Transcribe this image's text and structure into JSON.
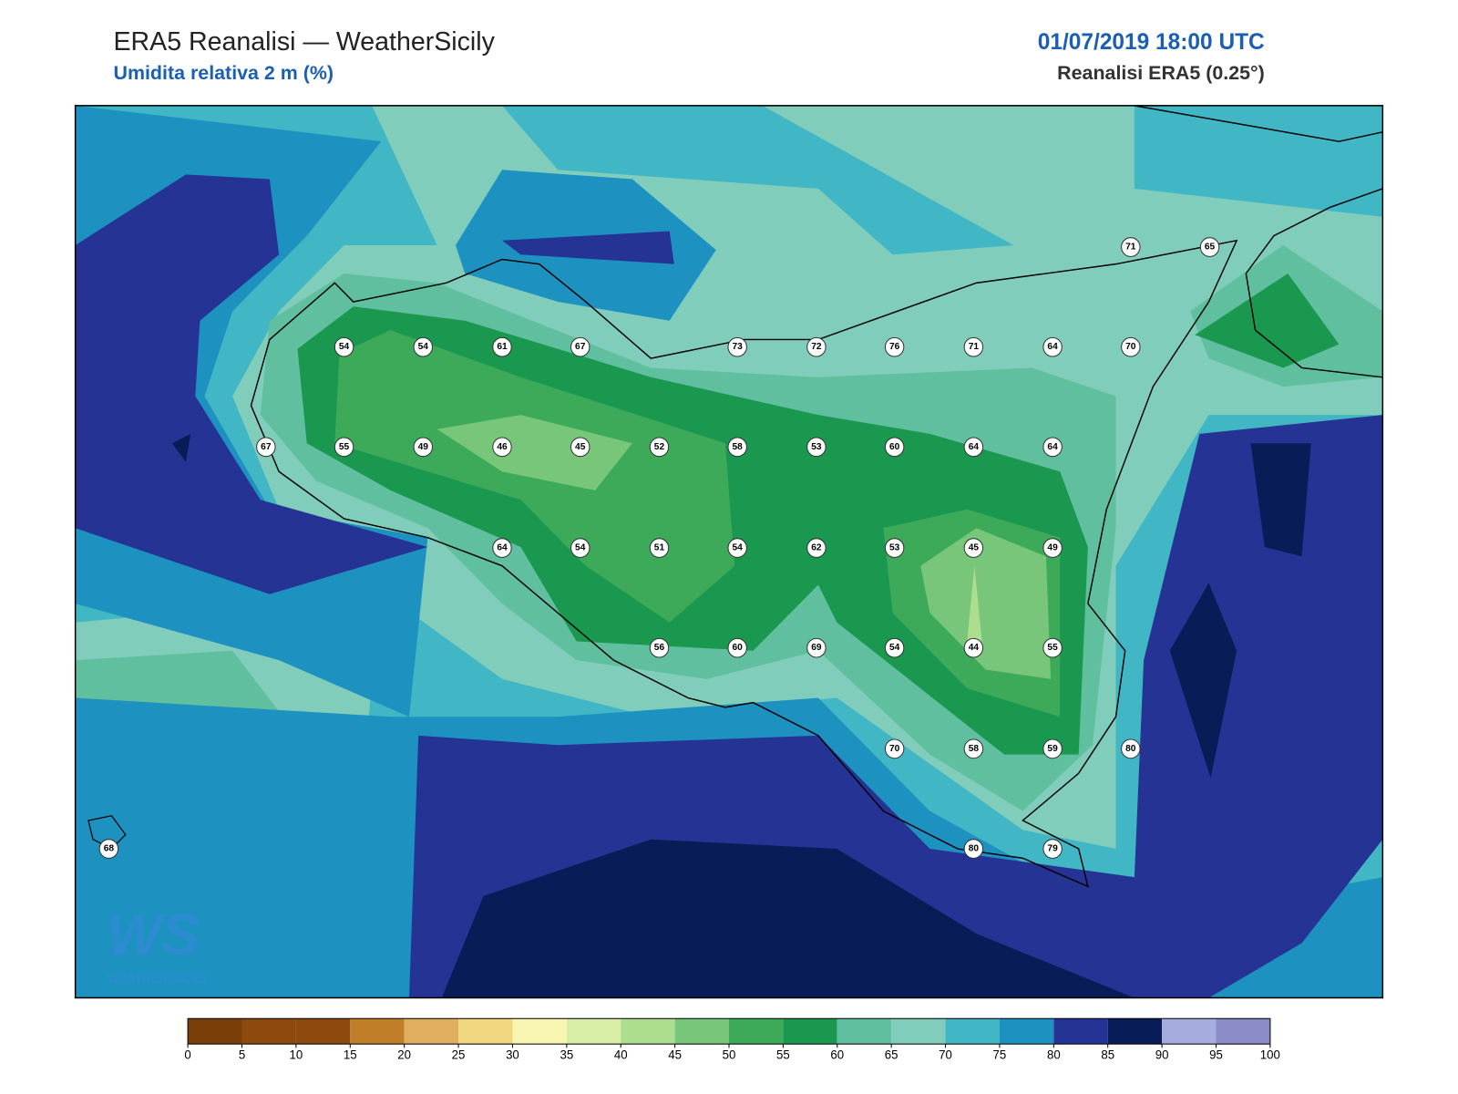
{
  "header": {
    "title": "ERA5 Reanalisi — WeatherSicily",
    "subtitle": "Umidita relativa 2 m (%)",
    "datetime": "01/07/2019 18:00 UTC",
    "source": "Reanalisi ERA5 (0.25°)"
  },
  "stations": [
    71,
    65,
    54,
    54,
    61,
    67,
    73,
    72,
    76,
    71,
    64,
    70,
    67,
    55,
    49,
    46,
    45,
    52,
    58,
    53,
    60,
    64,
    64,
    64,
    54,
    51,
    54,
    62,
    53,
    45,
    49,
    56,
    60,
    69,
    54,
    44,
    55,
    70,
    58,
    59,
    80,
    68,
    80,
    79
  ],
  "colorbar": {
    "ticks": [
      0,
      5,
      10,
      15,
      20,
      25,
      30,
      35,
      40,
      45,
      50,
      55,
      60,
      65,
      70,
      75,
      80,
      85,
      90,
      95,
      100
    ],
    "colors": [
      "#7a3f08",
      "#8c4a0f",
      "#8c4a0f",
      "#c07e2a",
      "#dfae5e",
      "#f1d77f",
      "#f8f6b0",
      "#d9eea7",
      "#addd8e",
      "#78c679",
      "#3daa5a",
      "#1a9850",
      "#5fbf9e",
      "#80cdbb",
      "#41b6c4",
      "#1d91c0",
      "#253494",
      "#081d58",
      "#a6acdd",
      "#8c8cc8"
    ]
  },
  "logo": {
    "mark": "WS",
    "text": "WEATHER SICILY"
  }
}
